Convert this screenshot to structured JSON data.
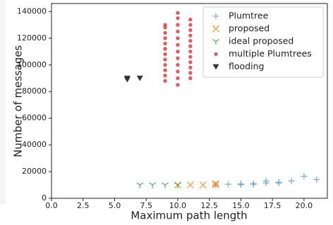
{
  "chart_data": {
    "type": "scatter",
    "x_label": "Maximum path length",
    "y_label": "Number of messages",
    "xlim": [
      0,
      21.85
    ],
    "ylim": [
      0,
      146000
    ],
    "xticks": [
      {
        "value": 0,
        "label": "0.0"
      },
      {
        "value": 2.5,
        "label": "2.5"
      },
      {
        "value": 5,
        "label": "5.0"
      },
      {
        "value": 7.5,
        "label": "7.5"
      },
      {
        "value": 10,
        "label": "10.0"
      },
      {
        "value": 12.5,
        "label": "12.5"
      },
      {
        "value": 15,
        "label": "15.0"
      },
      {
        "value": 17.5,
        "label": "17.5"
      },
      {
        "value": 20,
        "label": "20.0"
      }
    ],
    "yticks": [
      0,
      20000,
      40000,
      60000,
      80000,
      100000,
      120000,
      140000
    ],
    "legend": "upper right",
    "series": [
      {
        "name": "Plumtree",
        "color": "#5a9fd0",
        "marker": "plus",
        "x": [
          13,
          14,
          15,
          15,
          16,
          16,
          17,
          17,
          18,
          18,
          19,
          20,
          21
        ],
        "values": [
          10000,
          10500,
          10800,
          10200,
          11000,
          10500,
          11500,
          13000,
          12000,
          11500,
          13000,
          16500,
          14000
        ]
      },
      {
        "name": "proposed",
        "color": "#ff7f0e",
        "marker": "x",
        "x": [
          10,
          11,
          12,
          13,
          13
        ],
        "values": [
          10000,
          10000,
          10000,
          10000,
          11000
        ]
      },
      {
        "name": "ideal proposed",
        "color": "#2ca02c",
        "marker": "tri_down",
        "x": [
          7,
          8,
          9,
          10
        ],
        "values": [
          10000,
          10000,
          10000,
          10000
        ]
      },
      {
        "name": "multiple Plumtrees",
        "color": "#d62728",
        "marker": "circle",
        "x": [
          9,
          9,
          9,
          9,
          9,
          9,
          9,
          9,
          9,
          9,
          9,
          9,
          10,
          10,
          10,
          10,
          10,
          10,
          10,
          10,
          10,
          10,
          10,
          10,
          11,
          11,
          11,
          11,
          11,
          11,
          11,
          11,
          11,
          11,
          11,
          11
        ],
        "values": [
          88000,
          92000,
          96000,
          100000,
          104000,
          108000,
          112000,
          116000,
          120000,
          124000,
          128000,
          130000,
          85000,
          90000,
          95000,
          100000,
          105000,
          110000,
          115000,
          120000,
          125000,
          130000,
          135000,
          139000,
          90000,
          94000,
          98000,
          102000,
          106000,
          110000,
          114000,
          118000,
          122000,
          126000,
          130000,
          134000
        ]
      },
      {
        "name": "flooding",
        "color": "#333333",
        "marker": "triangle_down",
        "x": [
          6,
          6,
          7
        ],
        "values": [
          90000,
          89000,
          90000
        ]
      }
    ]
  }
}
